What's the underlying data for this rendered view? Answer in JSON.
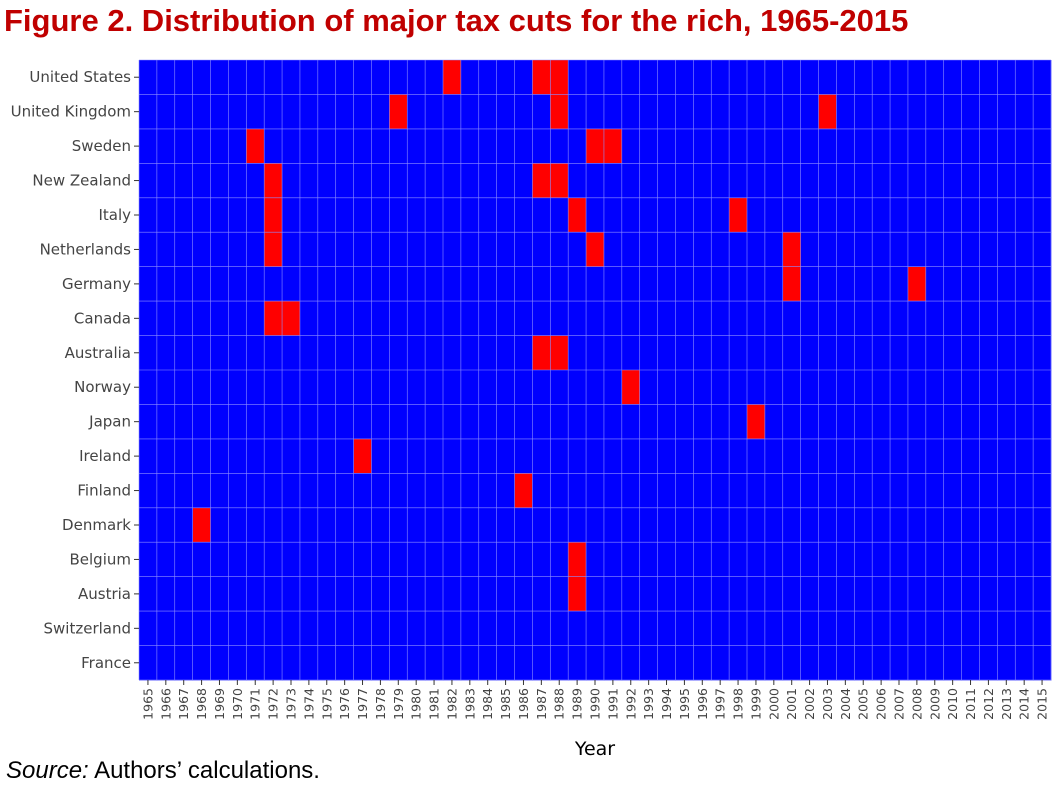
{
  "title": "Figure 2. Distribution of major tax cuts for the rich, 1965-2015",
  "source": {
    "label": "Source:",
    "text": " Authors’ calculations."
  },
  "chart_data": {
    "type": "heatmap",
    "xlabel": "Year",
    "ylabel": "",
    "x": [
      1965,
      1966,
      1967,
      1968,
      1969,
      1970,
      1971,
      1972,
      1973,
      1974,
      1975,
      1976,
      1977,
      1978,
      1979,
      1980,
      1981,
      1982,
      1983,
      1984,
      1985,
      1986,
      1987,
      1988,
      1989,
      1990,
      1991,
      1992,
      1993,
      1994,
      1995,
      1996,
      1997,
      1998,
      1999,
      2000,
      2001,
      2002,
      2003,
      2004,
      2005,
      2006,
      2007,
      2008,
      2009,
      2010,
      2011,
      2012,
      2013,
      2014,
      2015
    ],
    "y": [
      "United States",
      "United Kingdom",
      "Sweden",
      "New Zealand",
      "Italy",
      "Netherlands",
      "Germany",
      "Canada",
      "Australia",
      "Norway",
      "Japan",
      "Ireland",
      "Finland",
      "Denmark",
      "Belgium",
      "Austria",
      "Switzerland",
      "France"
    ],
    "cuts": {
      "United States": [
        1982,
        1987,
        1988
      ],
      "United Kingdom": [
        1979,
        1988,
        2003
      ],
      "Sweden": [
        1971,
        1990,
        1991
      ],
      "New Zealand": [
        1972,
        1987,
        1988
      ],
      "Italy": [
        1972,
        1989,
        1998
      ],
      "Netherlands": [
        1972,
        1990,
        2001
      ],
      "Germany": [
        2001,
        2008
      ],
      "Canada": [
        1972,
        1973
      ],
      "Australia": [
        1987,
        1988
      ],
      "Norway": [
        1992
      ],
      "Japan": [
        1999
      ],
      "Ireland": [
        1977
      ],
      "Finland": [
        1986
      ],
      "Denmark": [
        1968
      ],
      "Belgium": [
        1989
      ],
      "Austria": [
        1989
      ],
      "Switzerland": [],
      "France": []
    },
    "colors": {
      "no_cut": "#0000ff",
      "cut": "#ff0000",
      "grid": "#8e8eff"
    },
    "grid": true,
    "legend": "none"
  }
}
